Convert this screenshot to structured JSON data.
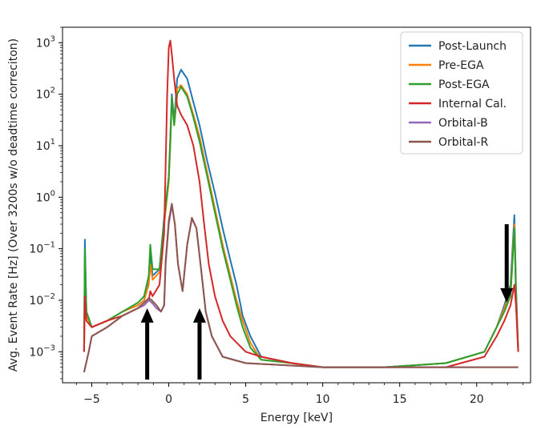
{
  "chart_data": {
    "type": "line",
    "xlabel": "Energy [keV]",
    "ylabel": "Avg. Event Rate [Hz] (Over 3200s w/o deadtime correciton)",
    "xlim": [
      -6.9,
      23.5
    ],
    "ylim": [
      0.00025,
      2000
    ],
    "yscale": "log",
    "grid": false,
    "legend_position": "top-right",
    "x_ticks": [
      {
        "value": -5,
        "label": "−5"
      },
      {
        "value": 0,
        "label": "0"
      },
      {
        "value": 5,
        "label": "5"
      },
      {
        "value": 10,
        "label": "10"
      },
      {
        "value": 15,
        "label": "15"
      },
      {
        "value": 20,
        "label": "20"
      }
    ],
    "y_ticks": [
      {
        "value": 0.001,
        "base": "10",
        "exp": "−3"
      },
      {
        "value": 0.01,
        "base": "10",
        "exp": "−2"
      },
      {
        "value": 0.1,
        "base": "10",
        "exp": "−1"
      },
      {
        "value": 1,
        "base": "10",
        "exp": "0"
      },
      {
        "value": 10,
        "base": "10",
        "exp": "1"
      },
      {
        "value": 100,
        "base": "10",
        "exp": "2"
      },
      {
        "value": 1000,
        "base": "10",
        "exp": "3"
      }
    ],
    "series": [
      {
        "name": "Post-Launch",
        "color": "#1f77b4",
        "points": [
          [
            -5.5,
            0.001
          ],
          [
            -5.45,
            0.15
          ],
          [
            -5.35,
            0.006
          ],
          [
            -5,
            0.003
          ],
          [
            -4,
            0.004
          ],
          [
            -3,
            0.006
          ],
          [
            -2,
            0.008
          ],
          [
            -1.6,
            0.01
          ],
          [
            -1.3,
            0.025
          ],
          [
            -1.2,
            0.08
          ],
          [
            -1.05,
            0.03
          ],
          [
            -0.6,
            0.04
          ],
          [
            -0.3,
            0.4
          ],
          [
            0,
            2.5
          ],
          [
            0.1,
            15
          ],
          [
            0.2,
            100
          ],
          [
            0.35,
            30
          ],
          [
            0.55,
            200
          ],
          [
            0.8,
            300
          ],
          [
            1.2,
            200
          ],
          [
            1.6,
            70
          ],
          [
            2,
            25
          ],
          [
            2.5,
            5
          ],
          [
            3,
            1.2
          ],
          [
            3.5,
            0.25
          ],
          [
            4,
            0.06
          ],
          [
            4.4,
            0.02
          ],
          [
            4.8,
            0.005
          ],
          [
            5.3,
            0.002
          ],
          [
            6,
            0.0008
          ],
          [
            8,
            0.0006
          ],
          [
            10,
            0.0005
          ],
          [
            14,
            0.0005
          ],
          [
            18,
            0.0006
          ],
          [
            20.5,
            0.001
          ],
          [
            21.3,
            0.003
          ],
          [
            21.8,
            0.008
          ],
          [
            22.2,
            0.02
          ],
          [
            22.45,
            0.45
          ],
          [
            22.55,
            0.02
          ],
          [
            22.7,
            0.001
          ]
        ]
      },
      {
        "name": "Pre-EGA",
        "color": "#ff7f0e",
        "points": [
          [
            -5.5,
            0.001
          ],
          [
            -5.45,
            0.05
          ],
          [
            -5.35,
            0.005
          ],
          [
            -5,
            0.003
          ],
          [
            -4,
            0.004
          ],
          [
            -3,
            0.006
          ],
          [
            -2,
            0.008
          ],
          [
            -1.6,
            0.01
          ],
          [
            -1.3,
            0.02
          ],
          [
            -1.2,
            0.05
          ],
          [
            -1.05,
            0.025
          ],
          [
            -0.6,
            0.035
          ],
          [
            -0.3,
            0.3
          ],
          [
            0,
            2
          ],
          [
            0.1,
            10
          ],
          [
            0.2,
            80
          ],
          [
            0.35,
            25
          ],
          [
            0.55,
            130
          ],
          [
            0.8,
            150
          ],
          [
            1.2,
            100
          ],
          [
            1.6,
            40
          ],
          [
            2,
            15
          ],
          [
            2.5,
            3
          ],
          [
            3,
            0.6
          ],
          [
            3.5,
            0.12
          ],
          [
            4,
            0.03
          ],
          [
            4.4,
            0.01
          ],
          [
            4.8,
            0.004
          ],
          [
            5.3,
            0.0015
          ],
          [
            6,
            0.0007
          ],
          [
            8,
            0.0006
          ],
          [
            10,
            0.0005
          ],
          [
            14,
            0.0005
          ],
          [
            18,
            0.0006
          ],
          [
            20.5,
            0.001
          ],
          [
            21.3,
            0.003
          ],
          [
            21.8,
            0.007
          ],
          [
            22.2,
            0.015
          ],
          [
            22.45,
            0.3
          ],
          [
            22.55,
            0.015
          ],
          [
            22.7,
            0.001
          ]
        ]
      },
      {
        "name": "Post-EGA",
        "color": "#2ca02c",
        "points": [
          [
            -5.5,
            0.001
          ],
          [
            -5.45,
            0.1
          ],
          [
            -5.35,
            0.006
          ],
          [
            -5,
            0.003
          ],
          [
            -4,
            0.004
          ],
          [
            -3,
            0.006
          ],
          [
            -2,
            0.009
          ],
          [
            -1.6,
            0.012
          ],
          [
            -1.3,
            0.03
          ],
          [
            -1.2,
            0.12
          ],
          [
            -1.05,
            0.04
          ],
          [
            -0.6,
            0.04
          ],
          [
            -0.3,
            0.35
          ],
          [
            0,
            2.5
          ],
          [
            0.1,
            12
          ],
          [
            0.2,
            90
          ],
          [
            0.35,
            25
          ],
          [
            0.55,
            100
          ],
          [
            0.8,
            140
          ],
          [
            1.2,
            90
          ],
          [
            1.6,
            35
          ],
          [
            2,
            12
          ],
          [
            2.5,
            2.5
          ],
          [
            3,
            0.5
          ],
          [
            3.5,
            0.1
          ],
          [
            4,
            0.025
          ],
          [
            4.4,
            0.008
          ],
          [
            4.8,
            0.003
          ],
          [
            5.3,
            0.0012
          ],
          [
            6,
            0.0007
          ],
          [
            8,
            0.0006
          ],
          [
            10,
            0.0005
          ],
          [
            14,
            0.0005
          ],
          [
            18,
            0.0006
          ],
          [
            20.5,
            0.001
          ],
          [
            21.3,
            0.003
          ],
          [
            21.8,
            0.006
          ],
          [
            22.2,
            0.012
          ],
          [
            22.45,
            0.25
          ],
          [
            22.55,
            0.012
          ],
          [
            22.7,
            0.001
          ]
        ]
      },
      {
        "name": "Internal Cal.",
        "color": "#d62728",
        "points": [
          [
            -5.5,
            0.001
          ],
          [
            -5.45,
            0.012
          ],
          [
            -5.35,
            0.004
          ],
          [
            -5,
            0.003
          ],
          [
            -4,
            0.004
          ],
          [
            -3,
            0.005
          ],
          [
            -2,
            0.007
          ],
          [
            -1.6,
            0.008
          ],
          [
            -1.3,
            0.01
          ],
          [
            -1.2,
            0.015
          ],
          [
            -1.05,
            0.012
          ],
          [
            -0.6,
            0.02
          ],
          [
            -0.3,
            0.2
          ],
          [
            -0.1,
            100
          ],
          [
            0,
            800
          ],
          [
            0.1,
            1100
          ],
          [
            0.2,
            600
          ],
          [
            0.35,
            200
          ],
          [
            0.55,
            60
          ],
          [
            0.8,
            40
          ],
          [
            1.2,
            25
          ],
          [
            1.6,
            10
          ],
          [
            2,
            2
          ],
          [
            2.3,
            0.3
          ],
          [
            2.6,
            0.05
          ],
          [
            3,
            0.012
          ],
          [
            3.5,
            0.004
          ],
          [
            4,
            0.002
          ],
          [
            5,
            0.001
          ],
          [
            6,
            0.0008
          ],
          [
            8,
            0.0006
          ],
          [
            10,
            0.0005
          ],
          [
            14,
            0.0005
          ],
          [
            18,
            0.0005
          ],
          [
            20.5,
            0.0008
          ],
          [
            21.3,
            0.002
          ],
          [
            21.8,
            0.004
          ],
          [
            22.2,
            0.008
          ],
          [
            22.45,
            0.02
          ],
          [
            22.55,
            0.008
          ],
          [
            22.7,
            0.001
          ]
        ]
      },
      {
        "name": "Orbital-B",
        "color": "#9467bd",
        "points": [
          [
            -5.5,
            0.0004
          ],
          [
            -5.2,
            0.001
          ],
          [
            -5,
            0.002
          ],
          [
            -4,
            0.003
          ],
          [
            -3,
            0.005
          ],
          [
            -2,
            0.007
          ],
          [
            -1.6,
            0.008
          ],
          [
            -1.3,
            0.01
          ],
          [
            -1.1,
            0.009
          ],
          [
            -0.8,
            0.007
          ],
          [
            -0.5,
            0.006
          ],
          [
            -0.3,
            0.008
          ],
          [
            -0.2,
            0.05
          ],
          [
            0,
            0.3
          ],
          [
            0.2,
            0.7
          ],
          [
            0.4,
            0.3
          ],
          [
            0.6,
            0.05
          ],
          [
            0.9,
            0.015
          ],
          [
            1.2,
            0.12
          ],
          [
            1.5,
            0.38
          ],
          [
            1.8,
            0.25
          ],
          [
            2.1,
            0.04
          ],
          [
            2.4,
            0.006
          ],
          [
            2.8,
            0.002
          ],
          [
            3.5,
            0.0008
          ],
          [
            5,
            0.0006
          ],
          [
            10,
            0.0005
          ],
          [
            18,
            0.0005
          ],
          [
            21,
            0.0005
          ],
          [
            22.7,
            0.0005
          ]
        ]
      },
      {
        "name": "Orbital-R",
        "color": "#8c564b",
        "points": [
          [
            -5.5,
            0.0004
          ],
          [
            -5.2,
            0.001
          ],
          [
            -5,
            0.002
          ],
          [
            -4,
            0.003
          ],
          [
            -3,
            0.005
          ],
          [
            -2,
            0.007
          ],
          [
            -1.6,
            0.009
          ],
          [
            -1.3,
            0.011
          ],
          [
            -1.1,
            0.01
          ],
          [
            -0.8,
            0.008
          ],
          [
            -0.5,
            0.006
          ],
          [
            -0.3,
            0.008
          ],
          [
            -0.2,
            0.06
          ],
          [
            0,
            0.35
          ],
          [
            0.2,
            0.75
          ],
          [
            0.4,
            0.3
          ],
          [
            0.6,
            0.05
          ],
          [
            0.9,
            0.015
          ],
          [
            1.2,
            0.12
          ],
          [
            1.5,
            0.4
          ],
          [
            1.8,
            0.25
          ],
          [
            2.1,
            0.04
          ],
          [
            2.4,
            0.006
          ],
          [
            2.8,
            0.002
          ],
          [
            3.5,
            0.0008
          ],
          [
            5,
            0.0006
          ],
          [
            10,
            0.0005
          ],
          [
            18,
            0.0005
          ],
          [
            21,
            0.0005
          ],
          [
            22.7,
            0.0005
          ]
        ]
      }
    ],
    "annotations": [
      {
        "type": "arrow",
        "direction": "up",
        "x": -1.4,
        "y_tail": 0.0002,
        "y_head": 0.007
      },
      {
        "type": "arrow",
        "direction": "up",
        "x": 2.0,
        "y_tail": 0.0002,
        "y_head": 0.007
      },
      {
        "type": "arrow",
        "direction": "down",
        "x": 21.95,
        "y_tail": 0.3,
        "y_head": 0.009
      }
    ]
  }
}
